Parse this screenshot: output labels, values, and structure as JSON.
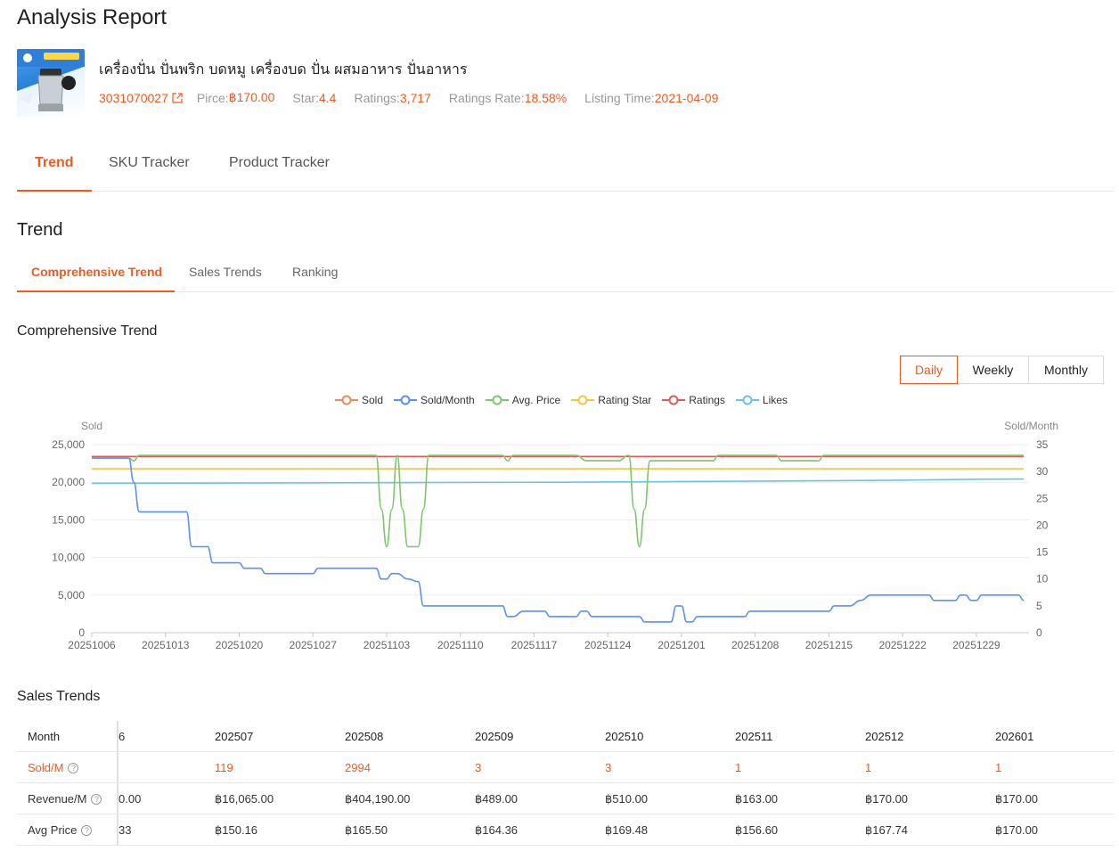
{
  "page": {
    "title": "Analysis Report"
  },
  "product": {
    "name": "เครื่องปั่น ปั่นพริก บดหมู เครื่องบด ปั่น ผสมอาหาร ปั่นอาหาร",
    "id": "3031070027",
    "price_label": "Pirce:",
    "price": "฿170.00",
    "star_label": "Star:",
    "star": "4.4",
    "ratings_label": "Ratings:",
    "ratings": "3,717",
    "ratings_rate_label": "Ratings Rate:",
    "ratings_rate": "18.58%",
    "listing_label": "Listing Time:",
    "listing_time": "2021-04-09"
  },
  "main_tabs": [
    "Trend",
    "SKU Tracker",
    "Product Tracker"
  ],
  "section": {
    "title": "Trend"
  },
  "sub_tabs": [
    "Comprehensive Trend",
    "Sales Trends",
    "Ranking"
  ],
  "chart_section": {
    "title": "Comprehensive Trend",
    "periods": [
      "Daily",
      "Weekly",
      "Monthly"
    ]
  },
  "colors": {
    "accent": "#f05a22",
    "sold": "#f08a5d",
    "sold_month": "#5b8ff9",
    "avg_price": "#7cc66b",
    "rating_star": "#f6c343",
    "ratings": "#e05a5a",
    "likes": "#6ec1e4"
  },
  "chart_data": {
    "type": "line",
    "left_axis": {
      "label": "Sold",
      "ticks": [
        "25,000",
        "20,000",
        "15,000",
        "10,000",
        "5,000",
        "0"
      ],
      "ylim": [
        0,
        25000
      ]
    },
    "right_axis": {
      "label": "Sold/Month",
      "ticks": [
        "35",
        "30",
        "25",
        "20",
        "15",
        "10",
        "5",
        "0"
      ],
      "ylim": [
        0,
        35
      ]
    },
    "x_ticks": [
      "20251006",
      "20251013",
      "20251020",
      "20251027",
      "20251103",
      "20251110",
      "20251117",
      "20251124",
      "20251201",
      "20251208",
      "20251215",
      "20251222",
      "20251229"
    ],
    "legend": [
      "Sold",
      "Sold/Month",
      "Avg. Price",
      "Rating Star",
      "Ratings",
      "Likes"
    ],
    "grid": true,
    "legend_position": "top",
    "series": [
      {
        "name": "Sold/Month",
        "axis": "right",
        "points": [
          [
            0,
            32.5
          ],
          [
            3.5,
            32.5
          ],
          [
            4,
            28
          ],
          [
            4.5,
            22.5
          ],
          [
            9,
            22.5
          ],
          [
            9.5,
            16
          ],
          [
            11,
            16
          ],
          [
            11.5,
            13
          ],
          [
            14,
            13
          ],
          [
            14.5,
            12
          ],
          [
            16,
            12
          ],
          [
            16.5,
            11
          ],
          [
            21,
            11
          ],
          [
            21.5,
            12
          ],
          [
            27,
            12
          ],
          [
            27.5,
            10
          ],
          [
            28,
            10
          ],
          [
            28.5,
            11
          ],
          [
            29,
            11
          ],
          [
            30,
            10
          ],
          [
            31,
            9.5
          ],
          [
            31.5,
            5
          ],
          [
            39,
            5
          ],
          [
            39.5,
            3
          ],
          [
            40,
            3
          ],
          [
            41,
            4
          ],
          [
            43,
            4
          ],
          [
            43.5,
            3
          ],
          [
            46,
            3
          ],
          [
            46.5,
            4
          ],
          [
            47,
            4
          ],
          [
            47.5,
            3
          ],
          [
            50,
            3
          ],
          [
            50.5,
            3
          ],
          [
            52,
            3
          ],
          [
            52.5,
            2
          ],
          [
            55,
            2
          ],
          [
            55.5,
            5
          ],
          [
            56,
            5
          ],
          [
            56.5,
            2
          ],
          [
            57,
            2
          ],
          [
            57.5,
            3
          ],
          [
            62,
            3
          ],
          [
            62.5,
            4
          ],
          [
            70,
            4
          ],
          [
            70.5,
            5
          ],
          [
            72,
            5
          ],
          [
            73,
            6
          ],
          [
            74,
            7
          ],
          [
            79.5,
            7
          ],
          [
            80,
            6
          ],
          [
            82,
            6
          ],
          [
            82.5,
            7
          ],
          [
            83,
            7
          ],
          [
            83.5,
            6
          ],
          [
            84,
            6
          ],
          [
            84.5,
            7
          ],
          [
            88,
            7
          ],
          [
            88.5,
            6
          ]
        ]
      },
      {
        "name": "Avg. Price",
        "axis": "right",
        "points": [
          [
            0,
            32.5
          ],
          [
            3.5,
            32.5
          ],
          [
            4,
            32
          ],
          [
            4.5,
            33
          ],
          [
            27,
            33
          ],
          [
            27.5,
            23
          ],
          [
            28,
            16
          ],
          [
            28.5,
            23
          ],
          [
            29,
            33
          ],
          [
            29.5,
            23
          ],
          [
            30,
            16
          ],
          [
            31,
            16
          ],
          [
            31.5,
            23
          ],
          [
            32,
            33
          ],
          [
            39,
            33
          ],
          [
            39.5,
            32
          ],
          [
            40,
            33
          ],
          [
            46,
            33
          ],
          [
            47,
            32
          ],
          [
            50,
            32
          ],
          [
            51,
            33
          ],
          [
            51.5,
            23
          ],
          [
            52,
            16
          ],
          [
            52.5,
            23
          ],
          [
            53,
            32
          ],
          [
            59,
            32
          ],
          [
            59.5,
            33
          ],
          [
            65,
            33
          ],
          [
            65.5,
            32
          ],
          [
            69,
            32
          ],
          [
            69.5,
            33
          ],
          [
            88.5,
            33
          ]
        ]
      },
      {
        "name": "Ratings",
        "axis": "right",
        "points": [
          [
            0,
            32.8
          ],
          [
            88.5,
            32.8
          ]
        ]
      },
      {
        "name": "Rating Star",
        "axis": "right",
        "points": [
          [
            0,
            30.5
          ],
          [
            88.5,
            30.5
          ]
        ]
      },
      {
        "name": "Likes",
        "axis": "right",
        "points": [
          [
            0,
            27.8
          ],
          [
            45,
            28.0
          ],
          [
            70,
            28.3
          ],
          [
            88.5,
            28.6
          ]
        ]
      }
    ]
  },
  "sales_section": {
    "title": "Sales Trends",
    "first_col_clip": [
      "6",
      "",
      "0.00",
      "33"
    ],
    "months": [
      "202507",
      "202508",
      "202509",
      "202510",
      "202511",
      "202512",
      "202601"
    ],
    "rows": [
      {
        "label": "Month"
      },
      {
        "label": "Sold/M",
        "values": [
          "119",
          "2994",
          "3",
          "3",
          "1",
          "1",
          "1"
        ]
      },
      {
        "label": "Revenue/M",
        "values": [
          "฿16,065.00",
          "฿404,190.00",
          "฿489.00",
          "฿510.00",
          "฿163.00",
          "฿170.00",
          "฿170.00"
        ]
      },
      {
        "label": "Avg Price",
        "values": [
          "฿150.16",
          "฿165.50",
          "฿164.36",
          "฿169.48",
          "฿156.60",
          "฿167.74",
          "฿170.00"
        ]
      }
    ]
  }
}
